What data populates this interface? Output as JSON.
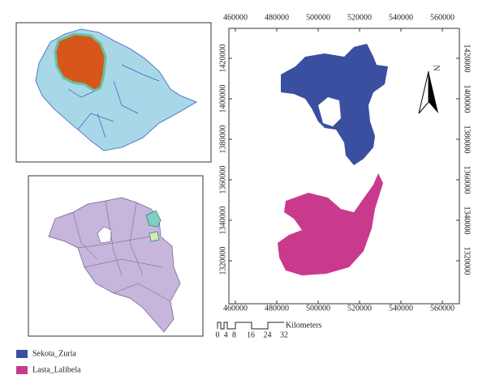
{
  "map": {
    "xticks": [
      460000,
      480000,
      500000,
      520000,
      540000,
      560000
    ],
    "yticks": [
      1320000,
      1340000,
      1360000,
      1380000,
      1400000,
      1420000
    ]
  },
  "north": "N",
  "scale_bar": {
    "labels": [
      0,
      4,
      8,
      16,
      24,
      32
    ],
    "unit": "Kilometers"
  },
  "legend": [
    {
      "name": "Sekota_Zuria",
      "color": "#3a4fa0"
    },
    {
      "name": "Lasta_Lalibela",
      "color": "#c93a8d"
    }
  ]
}
